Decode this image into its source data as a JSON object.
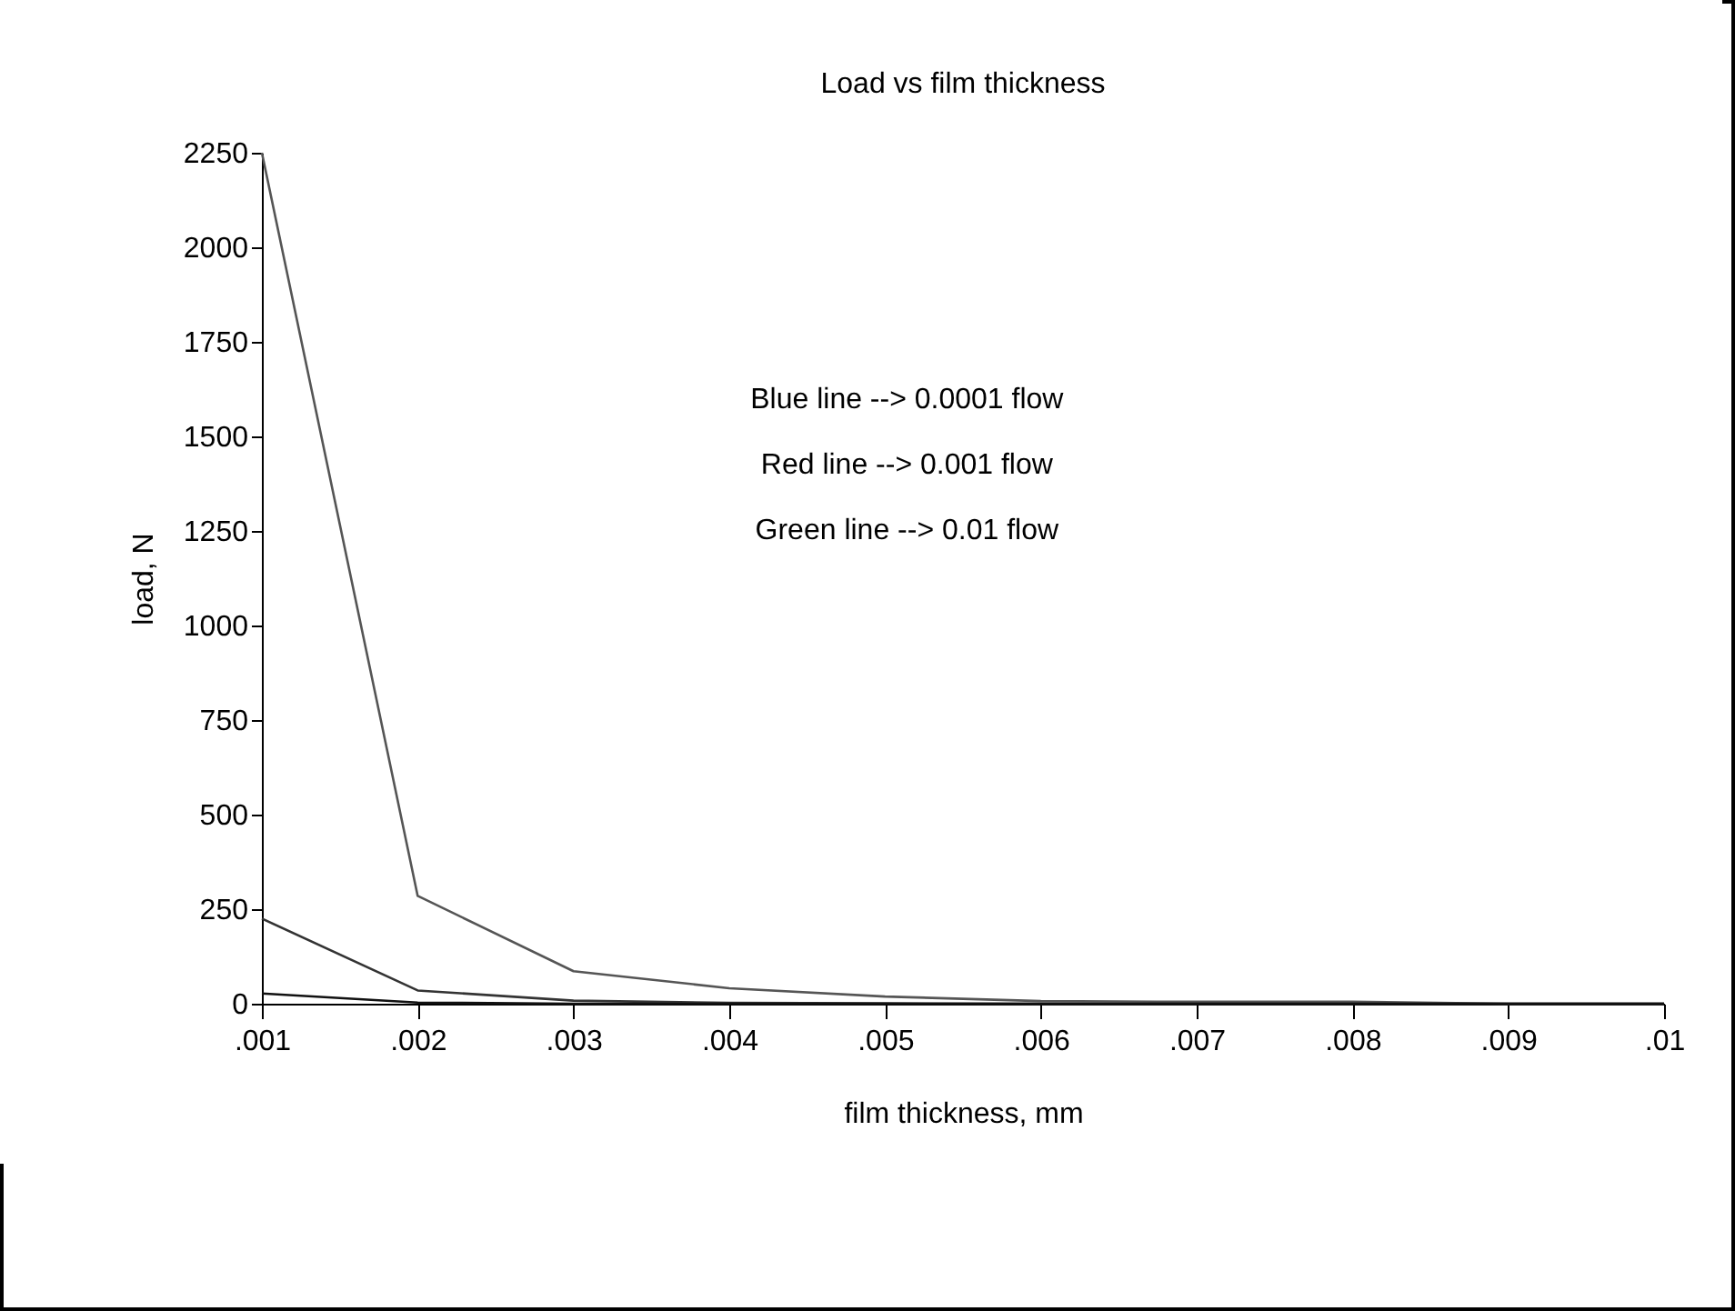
{
  "chart_data": {
    "type": "line",
    "title": "Load vs film thickness",
    "xlabel": "film thickness, mm",
    "ylabel": "load, N",
    "x": [
      0.001,
      0.002,
      0.003,
      0.004,
      0.005,
      0.006,
      0.007,
      0.008,
      0.009,
      0.01
    ],
    "xlim": [
      0.001,
      0.01
    ],
    "xticks": [
      {
        "value": 0.001,
        "label": ".001"
      },
      {
        "value": 0.002,
        "label": ".002"
      },
      {
        "value": 0.003,
        "label": ".003"
      },
      {
        "value": 0.004,
        "label": ".004"
      },
      {
        "value": 0.005,
        "label": ".005"
      },
      {
        "value": 0.006,
        "label": ".006"
      },
      {
        "value": 0.007,
        "label": ".007"
      },
      {
        "value": 0.008,
        "label": ".008"
      },
      {
        "value": 0.009,
        "label": ".009"
      },
      {
        "value": 0.01,
        "label": ".01"
      }
    ],
    "ylim": [
      0,
      2250
    ],
    "yticks": [
      0,
      250,
      500,
      750,
      1000,
      1250,
      1500,
      1750,
      2000,
      2250
    ],
    "series": [
      {
        "color": "#555555",
        "values": [
          2250,
          285,
          86,
          41,
          19,
          7,
          5,
          5,
          0,
          0
        ]
      },
      {
        "color": "#333333",
        "values": [
          225,
          35,
          8,
          2,
          1,
          0,
          0,
          0,
          0,
          0
        ]
      },
      {
        "color": "#111111",
        "values": [
          27,
          3,
          0,
          0,
          0,
          0,
          0,
          0,
          0,
          0
        ]
      }
    ],
    "annotations": [
      "Blue line --> 0.0001 flow",
      "Red line --> 0.001 flow",
      "Green line --> 0.01 flow"
    ],
    "grid": false,
    "marker": "none",
    "line_style": "solid"
  }
}
